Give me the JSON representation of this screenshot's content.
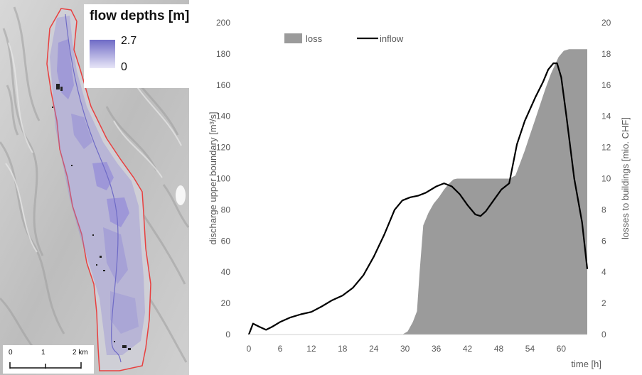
{
  "map": {
    "legend": {
      "title": "flow depths [m]",
      "max_label": "2.7",
      "min_label": "0"
    },
    "scalebar": {
      "labels": [
        "0",
        "1",
        "2 km"
      ]
    },
    "colors": {
      "outline": "#e8403f",
      "flow": "#8c84d8",
      "hillshade": "#c9c9c9"
    }
  },
  "chart_data": {
    "type": "area",
    "xlabel": "time [h]",
    "ylabel": "discharge upper boundary [m³/s]",
    "y2label": "losses to buildings [mio. CHF]",
    "xlim": [
      0,
      65
    ],
    "ylim": [
      0,
      200
    ],
    "y2lim": [
      0,
      20
    ],
    "xticks": [
      "0",
      "6",
      "12",
      "18",
      "24",
      "30",
      "36",
      "42",
      "48",
      "54",
      "60"
    ],
    "yticks": [
      "0",
      "20",
      "40",
      "60",
      "80",
      "100",
      "120",
      "140",
      "160",
      "180",
      "200"
    ],
    "y2ticks": [
      "0",
      "2",
      "4",
      "6",
      "8",
      "10",
      "12",
      "14",
      "16",
      "18",
      "20"
    ],
    "legend_position": "top-left",
    "grid": false,
    "series": [
      {
        "name": "loss",
        "type": "area",
        "axis": "right",
        "color": "#9b9b9b",
        "x": [
          29.5,
          30.5,
          31.5,
          32.3,
          32.8,
          33.5,
          34.5,
          35.5,
          36.5,
          37.5,
          38.5,
          39.3,
          40.0,
          42.0,
          44.0,
          46.0,
          48.0,
          50.0,
          51.2,
          52.0,
          53.0,
          54.0,
          55.0,
          56.0,
          57.0,
          58.0,
          58.8,
          59.5,
          60.5,
          61.5,
          65.0
        ],
        "y": [
          0,
          0.2,
          0.8,
          1.5,
          4.0,
          7.0,
          7.8,
          8.4,
          8.8,
          9.3,
          9.7,
          9.95,
          10.0,
          10.0,
          10.0,
          10.0,
          10.0,
          10.0,
          10.2,
          10.9,
          11.8,
          12.8,
          13.8,
          14.8,
          15.8,
          16.7,
          17.3,
          17.8,
          18.2,
          18.3,
          18.3
        ]
      },
      {
        "name": "inflow",
        "type": "line",
        "axis": "left",
        "color": "#000000",
        "x": [
          0,
          0.8,
          2,
          3.3,
          4.5,
          6,
          8,
          10,
          12,
          14,
          16,
          18,
          20,
          22,
          24,
          26,
          28,
          29.5,
          31,
          32.5,
          34,
          36,
          37.5,
          39,
          40.5,
          42,
          43.5,
          44.5,
          45.5,
          47,
          48.5,
          50,
          51.5,
          53,
          55,
          56.5,
          57.5,
          58.5,
          59.2,
          60,
          61,
          62.5,
          64,
          65
        ],
        "y": [
          0,
          7,
          5,
          3,
          5,
          8,
          11,
          13,
          14.5,
          18,
          22,
          25,
          30,
          38,
          50,
          64,
          80,
          86,
          88,
          89,
          91,
          95,
          97,
          95,
          90,
          83,
          77,
          76,
          79,
          86,
          93,
          97,
          122,
          137,
          152,
          162,
          170,
          174,
          174,
          165,
          140,
          100,
          72,
          42
        ]
      }
    ]
  }
}
